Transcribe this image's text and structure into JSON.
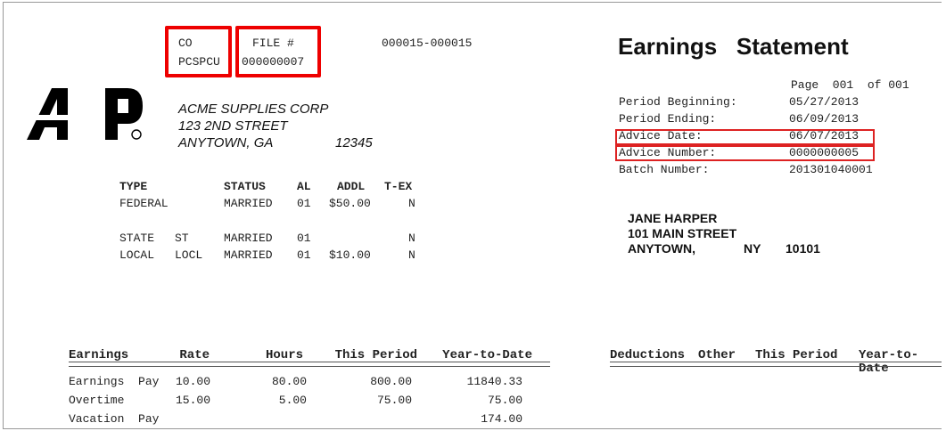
{
  "header": {
    "co_label": "CO",
    "co_value": "PCSPCU",
    "file_label": "FILE #",
    "file_value": "000000007",
    "sequence": "000015-000015",
    "logo_text": "ADP"
  },
  "company": {
    "name": "ACME SUPPLIES CORP",
    "street": "123  2ND  STREET",
    "city_state": "ANYTOWN,  GA",
    "zip": "12345"
  },
  "statement": {
    "title": "Earnings   Statement",
    "page": "Page  001  of 001",
    "fields": [
      {
        "label": "Period Beginning:",
        "value": "05/27/2013"
      },
      {
        "label": "Period Ending:",
        "value": "06/09/2013"
      },
      {
        "label": "Advice Date:",
        "value": "06/07/2013"
      },
      {
        "label": "Advice Number:",
        "value": "0000000005"
      },
      {
        "label": "Batch Number:",
        "value": "201301040001"
      }
    ]
  },
  "employee": {
    "name": "JANE HARPER",
    "street": "101 MAIN STREET",
    "city": "ANYTOWN,",
    "state": "NY",
    "zip": "10101"
  },
  "tax": {
    "headers": [
      "TYPE",
      "STATUS",
      "AL",
      "ADDL",
      "T-EX"
    ],
    "rows": [
      {
        "type": "FEDERAL",
        "code": "",
        "status": "MARRIED",
        "al": "01",
        "addl": "$50.00",
        "tex": "N"
      },
      {
        "type": "STATE",
        "code": "ST",
        "status": "MARRIED",
        "al": "01",
        "addl": "",
        "tex": "N"
      },
      {
        "type": "LOCAL",
        "code": "LOCL",
        "status": "MARRIED",
        "al": "01",
        "addl": "$10.00",
        "tex": "N"
      }
    ]
  },
  "earnings": {
    "headers": [
      "Earnings",
      "Rate",
      "Hours",
      "This Period",
      "Year-to-Date"
    ],
    "rows": [
      {
        "desc": "Earnings  Pay",
        "rate": "10.00",
        "hours": "80.00",
        "period": "800.00",
        "ytd": "11840.33"
      },
      {
        "desc": "Overtime",
        "rate": "15.00",
        "hours": "5.00",
        "period": "75.00",
        "ytd": "75.00"
      },
      {
        "desc": "Vacation  Pay",
        "rate": "",
        "hours": "",
        "period": "",
        "ytd": "174.00"
      }
    ]
  },
  "deductions": {
    "headers": [
      "Deductions",
      "Other",
      "This Period",
      "Year-to-Date"
    ]
  },
  "colors": {
    "highlight": "#e00000"
  }
}
